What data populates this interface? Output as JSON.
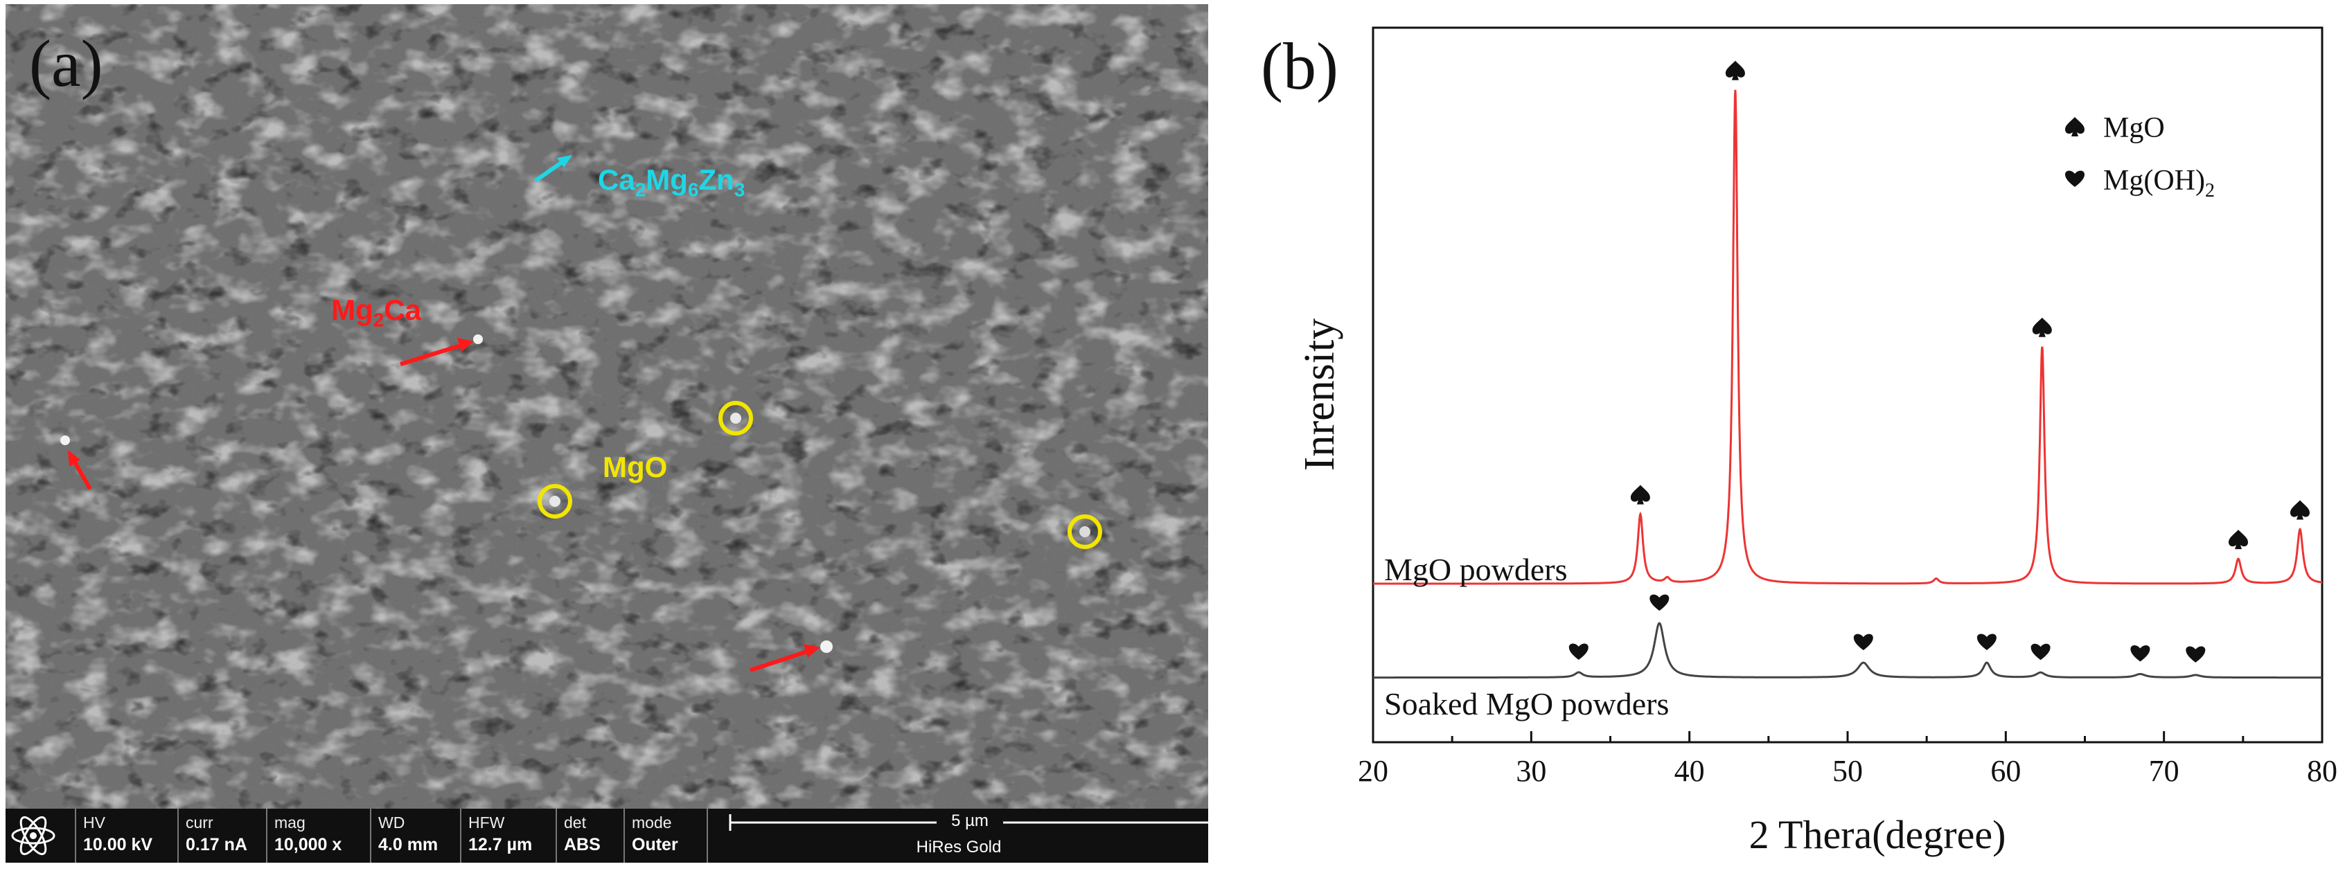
{
  "panel_a": {
    "label": "(a)",
    "annotations": {
      "ca2mg6zn3": {
        "base": "Ca",
        "s1": "2",
        "m": "Mg",
        "s2": "6",
        "z": "Zn",
        "s3": "3",
        "color": "#1fd6e6"
      },
      "mg2ca": {
        "base": "Mg",
        "s1": "2",
        "rest": "Ca",
        "color": "#ff1a1a"
      },
      "mgo": {
        "text": "MgO",
        "color": "#f2e600"
      }
    },
    "info_bar": {
      "hv_label": "HV",
      "hv_value": "10.00 kV",
      "curr_label": "curr",
      "curr_value": "0.17 nA",
      "mag_label": "mag",
      "mag_value": "10,000 x",
      "wd_label": "WD",
      "wd_value": "4.0 mm",
      "hfw_label": "HFW",
      "hfw_value": "12.7 µm",
      "det_label": "det",
      "det_value": "ABS",
      "mode_label": "mode",
      "mode_value": "Outer",
      "scale_label": "5 µm",
      "scale_caption": "HiRes Gold"
    }
  },
  "panel_b": {
    "label": "(b)",
    "legend": {
      "mgo": "MgO",
      "mgoh2_base": "Mg(OH)",
      "mgoh2_sub": "2"
    },
    "curve_labels": {
      "top": "MgO powders",
      "bottom": "Soaked MgO powders"
    }
  },
  "chart_data": {
    "type": "line",
    "xlabel": "2 Thera(degree)",
    "ylabel": "Inrensity",
    "xlim": [
      20,
      80
    ],
    "x_ticks": [
      20,
      30,
      40,
      50,
      60,
      70,
      80
    ],
    "grid": false,
    "legend_position": "top-right",
    "series": [
      {
        "name": "MgO powders",
        "color": "#ee3333",
        "baseline": 0.22,
        "peaks": [
          {
            "x": 36.9,
            "h": 0.14,
            "w": 0.2
          },
          {
            "x": 38.6,
            "h": 0.01,
            "w": 0.2
          },
          {
            "x": 42.9,
            "h": 1.0,
            "w": 0.18
          },
          {
            "x": 55.6,
            "h": 0.01,
            "w": 0.2
          },
          {
            "x": 62.3,
            "h": 0.48,
            "w": 0.18
          },
          {
            "x": 74.7,
            "h": 0.05,
            "w": 0.22
          },
          {
            "x": 78.6,
            "h": 0.11,
            "w": 0.22
          }
        ],
        "markers": {
          "symbol": "spade",
          "x": [
            36.9,
            42.9,
            62.3,
            74.7,
            78.6
          ]
        }
      },
      {
        "name": "Soaked MgO powders",
        "color": "#444444",
        "baseline": 0.03,
        "peaks": [
          {
            "x": 33.0,
            "h": 0.01,
            "w": 0.3
          },
          {
            "x": 38.1,
            "h": 0.11,
            "w": 0.4
          },
          {
            "x": 51.0,
            "h": 0.03,
            "w": 0.45
          },
          {
            "x": 58.8,
            "h": 0.03,
            "w": 0.3
          },
          {
            "x": 62.2,
            "h": 0.01,
            "w": 0.35
          },
          {
            "x": 68.5,
            "h": 0.007,
            "w": 0.4
          },
          {
            "x": 72.0,
            "h": 0.005,
            "w": 0.4
          }
        ],
        "markers": {
          "symbol": "heart",
          "x": [
            33.0,
            38.1,
            51.0,
            58.8,
            62.2,
            68.5,
            72.0
          ]
        }
      }
    ]
  }
}
